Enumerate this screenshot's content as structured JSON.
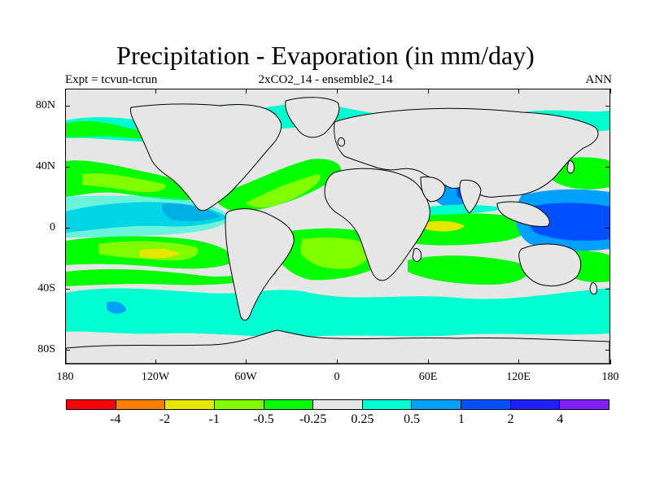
{
  "title": "Precipitation - Evaporation (in mm/day)",
  "subtitle_left": "Expt = tcvun-tcrun",
  "subtitle_center": "2xCO2_14 - ensemble2_14",
  "subtitle_right": "ANN",
  "lat_labels": [
    "80N",
    "40N",
    "0",
    "40S",
    "80S"
  ],
  "lon_labels": [
    "180",
    "120W",
    "60W",
    "0",
    "60E",
    "120E",
    "180"
  ],
  "colorbar": {
    "colors": [
      "#ff0000",
      "#ff8000",
      "#e6e600",
      "#80ff00",
      "#00ff00",
      "#e6e6e6",
      "#00ffd0",
      "#00a0ff",
      "#0050ff",
      "#2020ff",
      "#8020ff"
    ],
    "labels": [
      "-4",
      "-2",
      "-1",
      "-0.5",
      "-0.25",
      "0.25",
      "0.5",
      "1",
      "2",
      "4"
    ]
  },
  "colors": {
    "land": "#e6e6e6",
    "dry_strong": "#e6e600",
    "dry_medium": "#80ff00",
    "dry_light": "#00ff00",
    "wet_light": "#00ffd0",
    "wet_medium": "#00a0ff",
    "wet_strong": "#0050ff",
    "coast": "#000000"
  }
}
